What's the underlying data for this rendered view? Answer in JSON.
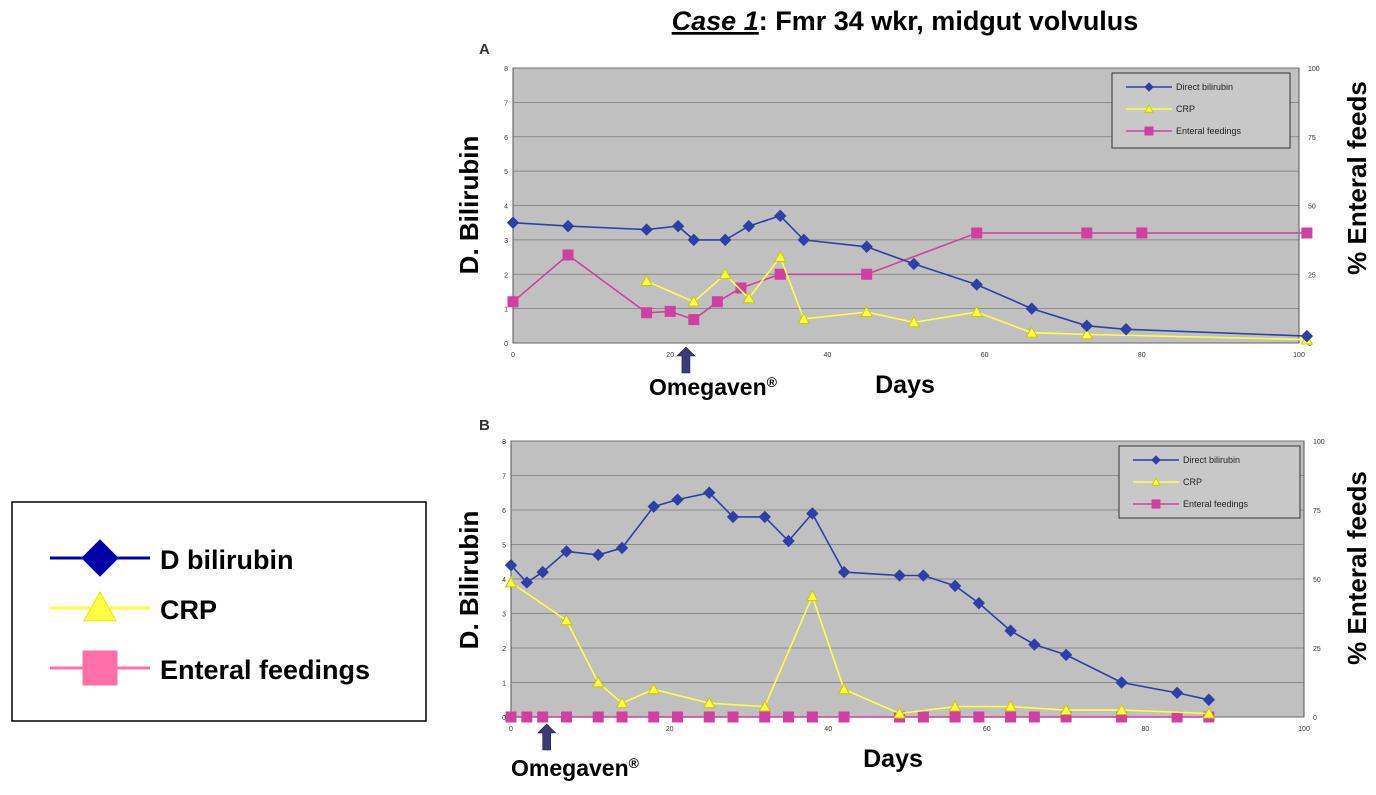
{
  "figure": {
    "title_case": "Case 1",
    "title_rest": ": Fmr 34 wkr, midgut volvulus",
    "big_legend": [
      {
        "label": "D bilirubin",
        "color": "#0000a8",
        "marker": "diamond"
      },
      {
        "label": "CRP",
        "color": "#ffff44",
        "marker": "triangle"
      },
      {
        "label": "Enteral feedings",
        "color": "#ff6fa8",
        "marker": "square"
      }
    ],
    "omegaven_label": "Omegaven",
    "omegaven_sup": "®"
  },
  "chart_data": [
    {
      "type": "line",
      "panel_label": "A",
      "xlabel": "Days",
      "ylabel_left": "D. Bilirubin",
      "ylabel_right": "% Enteral feeds",
      "xlim": [
        0,
        100
      ],
      "ylim_left": [
        0,
        8
      ],
      "ylim_right": [
        0,
        100
      ],
      "xticks": [
        0,
        20,
        40,
        60,
        80,
        100
      ],
      "yticks_left": [
        0,
        1,
        2,
        3,
        4,
        5,
        6,
        7,
        8
      ],
      "yticks_right": [
        0,
        25,
        50,
        75,
        100
      ],
      "grid": true,
      "legend_position": "top-right",
      "omegaven_day": 22,
      "series": [
        {
          "name": "Direct bilirubin",
          "axis": "left",
          "marker": "diamond",
          "color": "#2f3fa8",
          "x": [
            0,
            7,
            17,
            21,
            23,
            27,
            30,
            34,
            37,
            45,
            51,
            59,
            66,
            73,
            78,
            101
          ],
          "y": [
            3.5,
            3.4,
            3.3,
            3.4,
            3.0,
            3.0,
            3.4,
            3.7,
            3.0,
            2.8,
            2.3,
            1.7,
            1.0,
            0.5,
            0.4,
            0.2
          ]
        },
        {
          "name": "CRP",
          "axis": "left",
          "marker": "triangle",
          "color": "#ffff44",
          "x": [
            17,
            23,
            27,
            30,
            34,
            37,
            45,
            51,
            59,
            66,
            73,
            101
          ],
          "y": [
            1.8,
            1.2,
            2.0,
            1.3,
            2.5,
            0.7,
            0.9,
            0.6,
            0.9,
            0.3,
            0.25,
            0.1
          ]
        },
        {
          "name": "Enteral feedings",
          "axis": "right",
          "marker": "square",
          "color": "#d040a0",
          "x": [
            0,
            7,
            17,
            20,
            23,
            26,
            29,
            34,
            45,
            59,
            73,
            80,
            101
          ],
          "y": [
            15,
            32,
            11,
            11.5,
            8.5,
            15,
            20,
            25,
            25,
            40,
            40,
            40,
            40
          ]
        }
      ]
    },
    {
      "type": "line",
      "panel_label": "B",
      "xlabel": "Days",
      "ylabel_left": "D. Bilirubin",
      "ylabel_right": "% Enteral feeds",
      "xlim": [
        0,
        100
      ],
      "ylim_left": [
        0,
        8
      ],
      "ylim_right": [
        0,
        100
      ],
      "xticks": [
        0,
        20,
        40,
        60,
        80,
        100
      ],
      "yticks_left": [
        0,
        1,
        2,
        3,
        4,
        5,
        6,
        7,
        8
      ],
      "yticks_right": [
        0,
        25,
        50,
        75,
        100
      ],
      "grid": true,
      "legend_position": "top-right",
      "omegaven_day": 4.5,
      "series": [
        {
          "name": "Direct bilirubin",
          "axis": "left",
          "marker": "diamond",
          "color": "#2f3fa8",
          "x": [
            0,
            2,
            4,
            7,
            11,
            14,
            18,
            21,
            25,
            28,
            32,
            35,
            38,
            42,
            49,
            52,
            56,
            59,
            63,
            66,
            70,
            77,
            84,
            88
          ],
          "y": [
            4.4,
            3.9,
            4.2,
            4.8,
            4.7,
            4.9,
            6.1,
            6.3,
            6.5,
            5.8,
            5.8,
            5.1,
            5.9,
            4.2,
            4.1,
            4.1,
            3.8,
            3.3,
            2.5,
            2.1,
            1.8,
            1.0,
            0.7,
            0.5
          ]
        },
        {
          "name": "CRP",
          "axis": "left",
          "marker": "triangle",
          "color": "#ffff44",
          "x": [
            0,
            7,
            11,
            14,
            18,
            25,
            32,
            38,
            42,
            49,
            56,
            63,
            70,
            77,
            88
          ],
          "y": [
            3.9,
            2.8,
            1.0,
            0.4,
            0.8,
            0.4,
            0.3,
            3.5,
            0.8,
            0.1,
            0.3,
            0.3,
            0.2,
            0.2,
            0.1
          ]
        },
        {
          "name": "Enteral feedings",
          "axis": "right",
          "marker": "square",
          "color": "#d040a0",
          "x": [
            0,
            2,
            4,
            7,
            11,
            14,
            18,
            21,
            25,
            28,
            32,
            35,
            38,
            42,
            49,
            52,
            56,
            59,
            63,
            66,
            70,
            77,
            84,
            88
          ],
          "y": [
            0,
            0,
            0,
            0,
            0,
            0,
            0,
            0,
            0,
            0,
            0,
            0,
            0,
            0,
            0,
            0,
            0,
            0,
            0,
            0,
            0,
            0,
            0,
            0
          ]
        }
      ]
    }
  ]
}
